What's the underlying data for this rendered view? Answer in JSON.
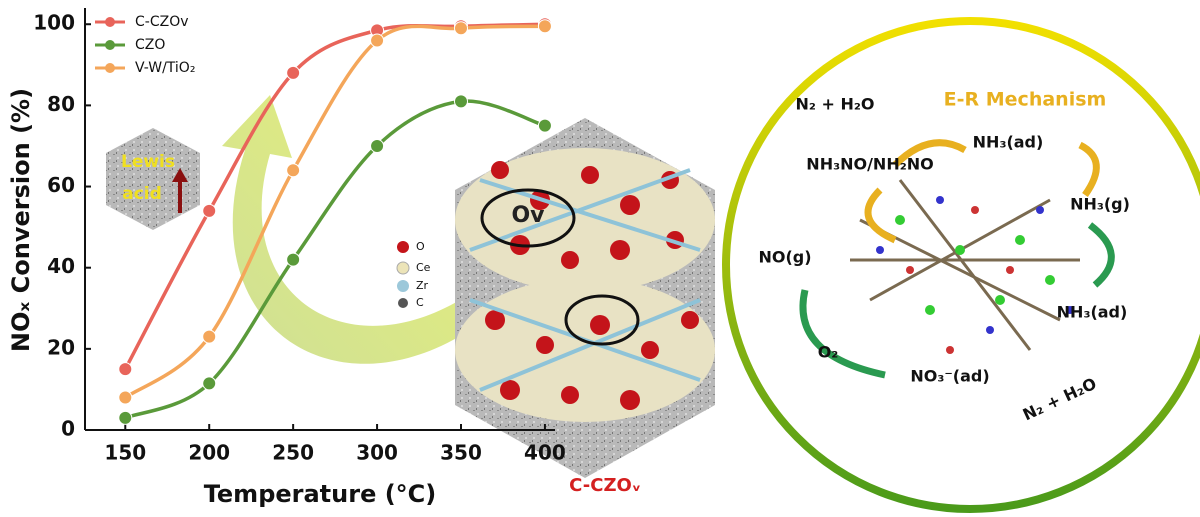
{
  "chart_data": {
    "type": "line",
    "xlabel": "Temperature (°C)",
    "ylabel": "NOₓ Conversion (%)",
    "x": [
      150,
      200,
      250,
      300,
      350,
      400
    ],
    "series": [
      {
        "name": "C-CZOv",
        "color": "#e8645a",
        "values": [
          15,
          54,
          88,
          98.5,
          99.5,
          100
        ]
      },
      {
        "name": "CZO",
        "color": "#5a9a3a",
        "values": [
          3,
          11.5,
          42,
          70,
          81,
          75
        ]
      },
      {
        "name": "V-W/TiO₂",
        "color": "#f4a65a",
        "values": [
          8,
          23,
          64,
          96,
          99,
          99.5
        ]
      }
    ],
    "xlim": [
      126,
      406
    ],
    "ylim": [
      0,
      104
    ],
    "xticks": [
      150,
      200,
      250,
      300,
      350,
      400
    ],
    "yticks": [
      0,
      20,
      40,
      60,
      80,
      100
    ]
  },
  "figure": {
    "lewis_acid": [
      "Lewis",
      "acid"
    ],
    "vacancy": "Ov",
    "atoms": [
      "O",
      "Ce",
      "Zr",
      "C"
    ],
    "material": "C-CZOᵥ",
    "mechanism": {
      "title": "E-R Mechanism",
      "n2_h2o_top": "N₂ + H₂O",
      "intermediate": "NH₃NO/NH₂NO",
      "nh3_ad_top": "NH₃(ad)",
      "nh3_g": "NH₃(g)",
      "no_g": "NO(g)",
      "nh3_ad_right": "NH₃(ad)",
      "o2": "O₂",
      "no3_ad": "NO₃⁻(ad)",
      "n2_h2o_bottom": "N₂ + H₂O"
    }
  }
}
